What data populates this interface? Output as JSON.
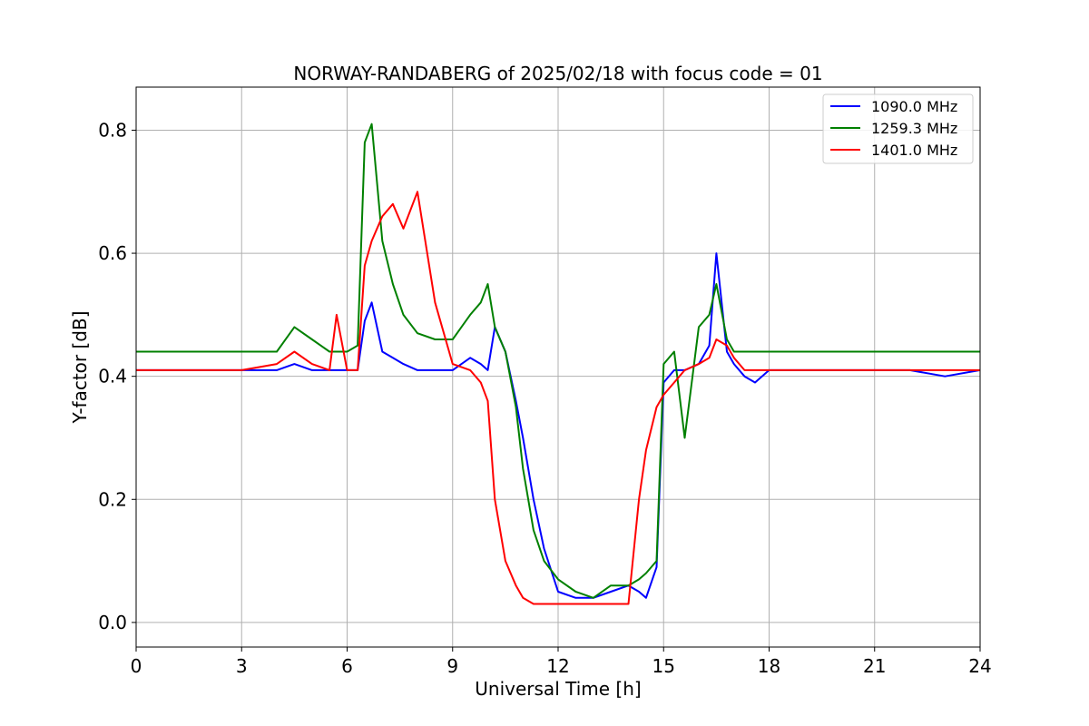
{
  "chart_data": {
    "type": "line",
    "title": "NORWAY-RANDABERG of 2025/02/18 with focus code = 01",
    "xlabel": "Universal Time [h]",
    "ylabel": "Y-factor [dB]",
    "xlim": [
      0,
      24
    ],
    "ylim": [
      -0.04,
      0.87
    ],
    "xticks": [
      0,
      3,
      6,
      9,
      12,
      15,
      18,
      21,
      24
    ],
    "yticks": [
      0.0,
      0.2,
      0.4,
      0.6,
      0.8
    ],
    "ytick_labels": [
      "0.0",
      "0.2",
      "0.4",
      "0.6",
      "0.8"
    ],
    "grid": true,
    "legend_position": "top-right",
    "series": [
      {
        "name": "1090.0 MHz",
        "color": "#0000ff",
        "x": [
          0.0,
          0.5,
          1.0,
          2.0,
          3.0,
          4.0,
          4.5,
          5.0,
          5.5,
          6.0,
          6.3,
          6.5,
          6.7,
          7.0,
          7.3,
          7.6,
          8.0,
          8.5,
          9.0,
          9.5,
          9.8,
          10.0,
          10.2,
          10.5,
          10.8,
          11.0,
          11.3,
          11.6,
          12.0,
          12.5,
          13.0,
          13.5,
          14.0,
          14.3,
          14.5,
          14.8,
          15.0,
          15.3,
          15.6,
          16.0,
          16.3,
          16.5,
          16.8,
          17.0,
          17.3,
          17.6,
          18.0,
          19.0,
          20.0,
          21.0,
          22.0,
          23.0,
          24.0
        ],
        "values": [
          0.41,
          0.41,
          0.41,
          0.41,
          0.41,
          0.41,
          0.42,
          0.41,
          0.41,
          0.41,
          0.41,
          0.49,
          0.52,
          0.44,
          0.43,
          0.42,
          0.41,
          0.41,
          0.41,
          0.43,
          0.42,
          0.41,
          0.48,
          0.44,
          0.36,
          0.3,
          0.2,
          0.12,
          0.05,
          0.04,
          0.04,
          0.05,
          0.06,
          0.05,
          0.04,
          0.09,
          0.39,
          0.41,
          0.41,
          0.42,
          0.45,
          0.6,
          0.44,
          0.42,
          0.4,
          0.39,
          0.41,
          0.41,
          0.41,
          0.41,
          0.41,
          0.4,
          0.41
        ]
      },
      {
        "name": "1259.3 MHz",
        "color": "#008000",
        "x": [
          0.0,
          0.5,
          1.0,
          2.0,
          3.0,
          4.0,
          4.5,
          5.0,
          5.5,
          6.0,
          6.3,
          6.5,
          6.7,
          7.0,
          7.3,
          7.6,
          8.0,
          8.5,
          9.0,
          9.5,
          9.8,
          10.0,
          10.2,
          10.5,
          10.8,
          11.0,
          11.3,
          11.6,
          12.0,
          12.5,
          13.0,
          13.5,
          14.0,
          14.3,
          14.5,
          14.8,
          15.0,
          15.3,
          15.6,
          16.0,
          16.3,
          16.5,
          16.8,
          17.0,
          17.3,
          17.6,
          18.0,
          19.0,
          20.0,
          21.0,
          22.0,
          23.0,
          24.0
        ],
        "values": [
          0.44,
          0.44,
          0.44,
          0.44,
          0.44,
          0.44,
          0.48,
          0.46,
          0.44,
          0.44,
          0.45,
          0.78,
          0.81,
          0.62,
          0.55,
          0.5,
          0.47,
          0.46,
          0.46,
          0.5,
          0.52,
          0.55,
          0.48,
          0.44,
          0.35,
          0.25,
          0.15,
          0.1,
          0.07,
          0.05,
          0.04,
          0.06,
          0.06,
          0.07,
          0.08,
          0.1,
          0.42,
          0.44,
          0.3,
          0.48,
          0.5,
          0.55,
          0.46,
          0.44,
          0.44,
          0.44,
          0.44,
          0.44,
          0.44,
          0.44,
          0.44,
          0.44,
          0.44
        ]
      },
      {
        "name": "1401.0 MHz",
        "color": "#ff0000",
        "x": [
          0.0,
          0.5,
          1.0,
          2.0,
          3.0,
          4.0,
          4.5,
          5.0,
          5.5,
          5.7,
          6.0,
          6.3,
          6.5,
          6.7,
          7.0,
          7.3,
          7.6,
          8.0,
          8.5,
          9.0,
          9.5,
          9.8,
          10.0,
          10.2,
          10.5,
          10.8,
          11.0,
          11.3,
          11.6,
          12.0,
          12.5,
          13.0,
          13.5,
          14.0,
          14.3,
          14.5,
          14.8,
          15.0,
          15.3,
          15.6,
          16.0,
          16.3,
          16.5,
          16.8,
          17.0,
          17.3,
          17.6,
          18.0,
          19.0,
          20.0,
          21.0,
          22.0,
          23.0,
          24.0
        ],
        "values": [
          0.41,
          0.41,
          0.41,
          0.41,
          0.41,
          0.42,
          0.44,
          0.42,
          0.41,
          0.5,
          0.41,
          0.41,
          0.58,
          0.62,
          0.66,
          0.68,
          0.64,
          0.7,
          0.52,
          0.42,
          0.41,
          0.39,
          0.36,
          0.2,
          0.1,
          0.06,
          0.04,
          0.03,
          0.03,
          0.03,
          0.03,
          0.03,
          0.03,
          0.03,
          0.2,
          0.28,
          0.35,
          0.37,
          0.39,
          0.41,
          0.42,
          0.43,
          0.46,
          0.45,
          0.43,
          0.41,
          0.41,
          0.41,
          0.41,
          0.41,
          0.41,
          0.41,
          0.41,
          0.41
        ]
      }
    ]
  }
}
